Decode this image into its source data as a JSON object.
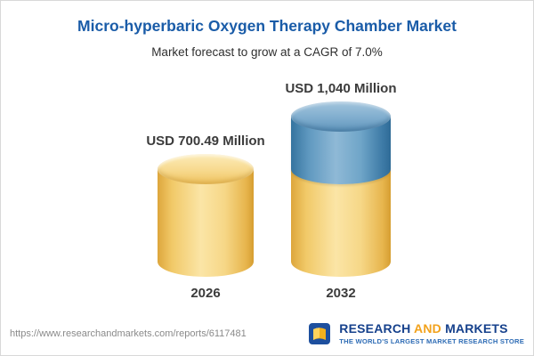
{
  "chart_data": {
    "type": "bar",
    "bar_style": "3d-cylinder",
    "title": "Micro-hyperbaric Oxygen Therapy Chamber Market",
    "subtitle": "Market forecast to grow at a CAGR of 7.0%",
    "categories": [
      "2026",
      "2032"
    ],
    "values": [
      700.49,
      1040
    ],
    "value_labels": [
      "USD 700.49 Million",
      "USD 1,040 Million"
    ],
    "unit": "USD Million",
    "cagr_percent": 7.0,
    "legend_position": "none",
    "grid": false,
    "colors": {
      "base_segment": "#F6D787",
      "growth_segment": "#6FA5C8",
      "title_text": "#1A5CA8",
      "label_text": "#3B3B3B"
    }
  },
  "footer": {
    "url": "https://www.researchandmarkets.com/reports/6117481",
    "logo": {
      "research": "RESEARCH",
      "and": "AND",
      "markets": "MARKETS",
      "tagline": "THE WORLD'S LARGEST MARKET RESEARCH STORE"
    }
  }
}
